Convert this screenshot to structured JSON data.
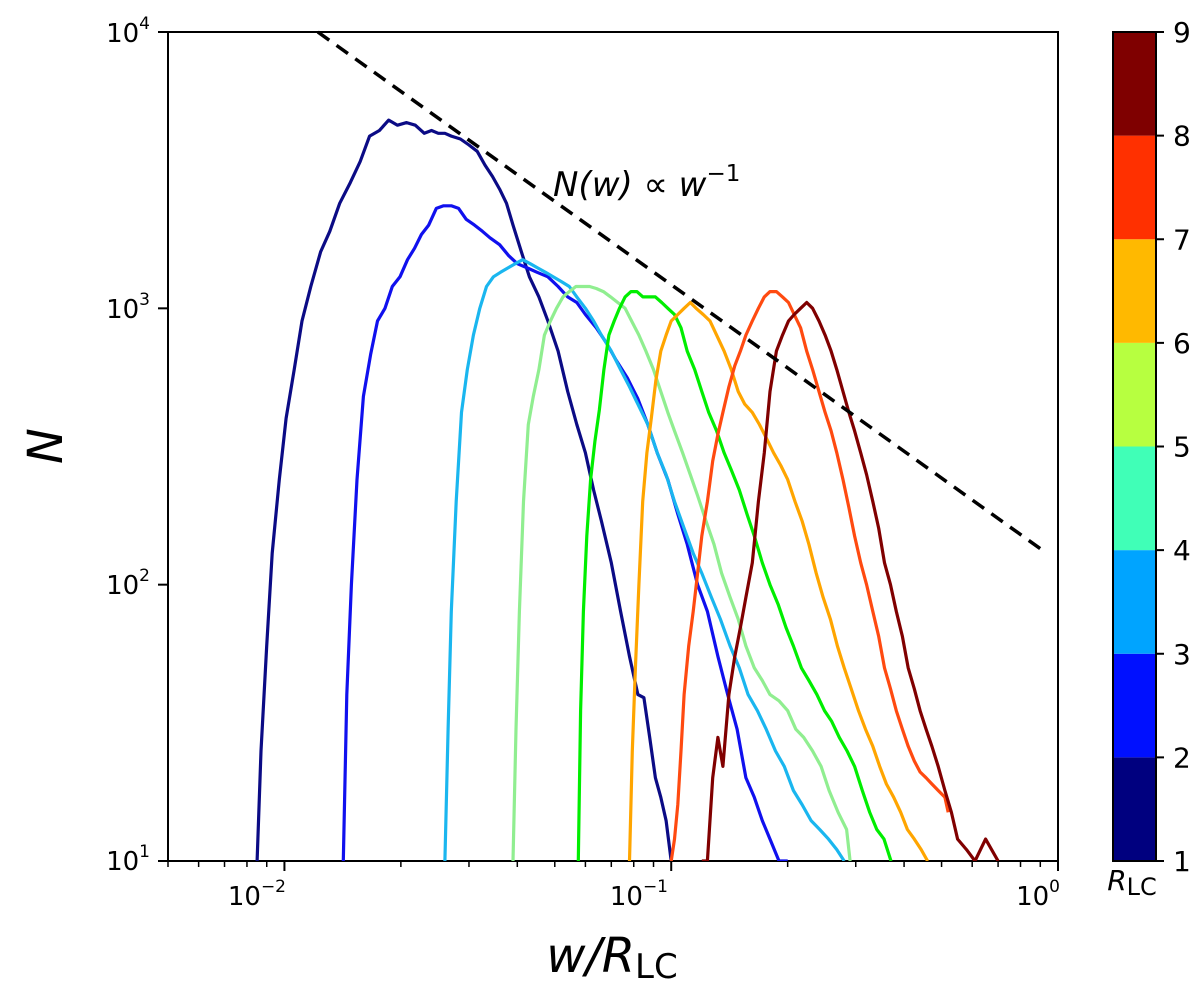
{
  "chart_data": {
    "type": "line",
    "xscale": "log",
    "yscale": "log",
    "xlim": [
      0.005,
      1
    ],
    "ylim": [
      10,
      10000
    ],
    "xlabel": {
      "italic": "w/R",
      "sub": "LC"
    },
    "ylabel": "N",
    "x_ticks": [
      {
        "base": "10",
        "exp": "−2",
        "value": 0.01
      },
      {
        "base": "10",
        "exp": "−1",
        "value": 0.1
      },
      {
        "base": "10",
        "exp": "0",
        "value": 1
      }
    ],
    "y_ticks": [
      {
        "base": "10",
        "exp": "1",
        "value": 10
      },
      {
        "base": "10",
        "exp": "2",
        "value": 100
      },
      {
        "base": "10",
        "exp": "3",
        "value": 1000
      },
      {
        "base": "10",
        "exp": "4",
        "value": 10000
      }
    ],
    "annotation": {
      "lhs": "N(w) ∝ w",
      "exp": "−1"
    },
    "reference_line": {
      "style": "dashed",
      "color": "#000000",
      "x": [
        0.0122,
        0.9
      ],
      "y": [
        10000,
        135
      ]
    },
    "colorbar": {
      "label": {
        "main": "R",
        "sub": "LC"
      },
      "range": [
        1,
        9
      ],
      "ticks": [
        "1",
        "2",
        "3",
        "4",
        "5",
        "6",
        "7",
        "8",
        "9"
      ],
      "colors": [
        "#00007f",
        "#0010ff",
        "#00a4ff",
        "#40ffb7",
        "#b7ff40",
        "#ffb900",
        "#ff3000",
        "#7f0000"
      ]
    },
    "series": [
      {
        "color": "#0b0b85",
        "x": [
          0.0085,
          0.0087,
          0.009,
          0.0093,
          0.0097,
          0.0101,
          0.0106,
          0.0111,
          0.0117,
          0.0124,
          0.0131,
          0.0139,
          0.0148,
          0.0157,
          0.0166,
          0.0176,
          0.0186,
          0.0196,
          0.0207,
          0.0218,
          0.023,
          0.024,
          0.025,
          0.026,
          0.027,
          0.0285,
          0.03,
          0.0315,
          0.033,
          0.0345,
          0.036,
          0.0375,
          0.039,
          0.041,
          0.043,
          0.0455,
          0.048,
          0.051,
          0.054,
          0.057,
          0.06,
          0.063,
          0.066,
          0.07,
          0.074,
          0.078,
          0.082,
          0.085,
          0.088,
          0.091,
          0.094,
          0.097,
          0.1
        ],
        "y": [
          10,
          25,
          60,
          130,
          240,
          400,
          600,
          900,
          1200,
          1600,
          1900,
          2400,
          2850,
          3400,
          4200,
          4400,
          4800,
          4600,
          4700,
          4600,
          4300,
          4400,
          4300,
          4300,
          4200,
          4100,
          3900,
          3700,
          3300,
          3000,
          2700,
          2400,
          2000,
          1600,
          1300,
          1100,
          900,
          700,
          500,
          380,
          300,
          220,
          170,
          120,
          80,
          55,
          40,
          39,
          28,
          20,
          17,
          14,
          10
        ]
      },
      {
        "color": "#1010ee",
        "x": [
          0.0142,
          0.0145,
          0.0149,
          0.0154,
          0.016,
          0.0167,
          0.0174,
          0.0182,
          0.019,
          0.0199,
          0.0208,
          0.0217,
          0.0226,
          0.0236,
          0.0247,
          0.0258,
          0.027,
          0.0282,
          0.0295,
          0.031,
          0.0325,
          0.034,
          0.036,
          0.038,
          0.04,
          0.0425,
          0.045,
          0.048,
          0.051,
          0.054,
          0.057,
          0.06,
          0.064,
          0.068,
          0.072,
          0.077,
          0.082,
          0.087,
          0.092,
          0.098,
          0.104,
          0.11,
          0.117,
          0.124,
          0.132,
          0.14,
          0.148,
          0.156,
          0.164,
          0.172,
          0.18,
          0.19,
          0.2
        ],
        "y": [
          10,
          40,
          100,
          240,
          480,
          680,
          900,
          1000,
          1200,
          1300,
          1500,
          1650,
          1850,
          2000,
          2300,
          2350,
          2350,
          2300,
          2100,
          2000,
          1900,
          1800,
          1700,
          1550,
          1450,
          1400,
          1350,
          1300,
          1200,
          1100,
          1050,
          950,
          850,
          750,
          650,
          560,
          470,
          380,
          300,
          240,
          180,
          140,
          100,
          80,
          55,
          40,
          30,
          20,
          17,
          14,
          12,
          10,
          10
        ]
      },
      {
        "color": "#1ab6ef",
        "x": [
          0.026,
          0.0265,
          0.027,
          0.0278,
          0.0287,
          0.0297,
          0.0308,
          0.032,
          0.0333,
          0.0347,
          0.0362,
          0.0378,
          0.0395,
          0.0413,
          0.0432,
          0.0452,
          0.0473,
          0.0495,
          0.052,
          0.0545,
          0.057,
          0.06,
          0.063,
          0.066,
          0.07,
          0.074,
          0.078,
          0.082,
          0.087,
          0.092,
          0.097,
          0.102,
          0.108,
          0.114,
          0.12,
          0.127,
          0.134,
          0.142,
          0.15,
          0.158,
          0.167,
          0.176,
          0.186,
          0.196,
          0.207,
          0.218,
          0.23,
          0.242,
          0.255,
          0.268,
          0.28
        ],
        "y": [
          10,
          30,
          80,
          200,
          420,
          600,
          800,
          1000,
          1200,
          1300,
          1350,
          1400,
          1450,
          1500,
          1450,
          1400,
          1350,
          1300,
          1250,
          1200,
          1100,
          1000,
          900,
          800,
          700,
          600,
          520,
          450,
          380,
          300,
          250,
          200,
          160,
          130,
          110,
          90,
          75,
          60,
          50,
          40,
          35,
          30,
          25,
          22,
          18,
          16,
          14,
          13,
          12,
          11,
          10
        ]
      },
      {
        "color": "#90ee90",
        "x": [
          0.039,
          0.0397,
          0.0405,
          0.0415,
          0.0427,
          0.044,
          0.0455,
          0.047,
          0.0487,
          0.0505,
          0.0525,
          0.0545,
          0.0567,
          0.059,
          0.0615,
          0.064,
          0.0668,
          0.0697,
          0.0727,
          0.076,
          0.079,
          0.0825,
          0.086,
          0.09,
          0.094,
          0.098,
          0.102,
          0.107,
          0.112,
          0.117,
          0.123,
          0.129,
          0.135,
          0.142,
          0.149,
          0.156,
          0.164,
          0.172,
          0.18,
          0.19,
          0.2,
          0.21,
          0.22,
          0.232,
          0.244,
          0.256,
          0.27,
          0.284,
          0.29
        ],
        "y": [
          10,
          30,
          80,
          200,
          380,
          480,
          600,
          800,
          900,
          1000,
          1100,
          1150,
          1200,
          1200,
          1200,
          1180,
          1150,
          1100,
          1050,
          1000,
          900,
          800,
          700,
          600,
          500,
          420,
          360,
          300,
          250,
          210,
          170,
          140,
          110,
          90,
          75,
          60,
          50,
          45,
          40,
          38,
          35,
          30,
          28,
          25,
          22,
          18,
          15,
          13,
          10
        ]
      },
      {
        "color": "#00ee00",
        "x": [
          0.0575,
          0.0583,
          0.0593,
          0.0605,
          0.0619,
          0.0635,
          0.0652,
          0.067,
          0.069,
          0.0712,
          0.0735,
          0.076,
          0.0787,
          0.0815,
          0.0845,
          0.0877,
          0.091,
          0.0945,
          0.098,
          0.102,
          0.106,
          0.11,
          0.115,
          0.12,
          0.125,
          0.131,
          0.137,
          0.143,
          0.15,
          0.157,
          0.164,
          0.172,
          0.18,
          0.189,
          0.198,
          0.207,
          0.217,
          0.227,
          0.238,
          0.249,
          0.26,
          0.272,
          0.285,
          0.298,
          0.312,
          0.326,
          0.34,
          0.355,
          0.37
        ],
        "y": [
          10,
          35,
          80,
          150,
          240,
          330,
          430,
          600,
          800,
          900,
          1000,
          1100,
          1150,
          1150,
          1100,
          1100,
          1100,
          1050,
          1000,
          950,
          850,
          700,
          600,
          500,
          420,
          360,
          300,
          260,
          220,
          180,
          150,
          120,
          100,
          85,
          70,
          60,
          50,
          45,
          40,
          35,
          32,
          28,
          25,
          22,
          18,
          15,
          13,
          12,
          10
        ]
      },
      {
        "color": "#ffa500",
        "x": [
          0.078,
          0.0793,
          0.0808,
          0.0825,
          0.0844,
          0.0865,
          0.0888,
          0.0913,
          0.094,
          0.097,
          0.1,
          0.104,
          0.108,
          0.112,
          0.116,
          0.121,
          0.126,
          0.131,
          0.137,
          0.143,
          0.149,
          0.155,
          0.162,
          0.169,
          0.176,
          0.184,
          0.192,
          0.2,
          0.209,
          0.218,
          0.227,
          0.237,
          0.247,
          0.258,
          0.269,
          0.28,
          0.292,
          0.305,
          0.318,
          0.332,
          0.346,
          0.36,
          0.376,
          0.392,
          0.408,
          0.425,
          0.443,
          0.46
        ],
        "y": [
          10,
          25,
          50,
          100,
          200,
          300,
          400,
          550,
          700,
          800,
          900,
          950,
          1000,
          1050,
          1000,
          950,
          900,
          800,
          700,
          600,
          500,
          450,
          420,
          380,
          340,
          300,
          270,
          240,
          200,
          170,
          140,
          110,
          90,
          75,
          60,
          50,
          42,
          35,
          30,
          26,
          22,
          19,
          17,
          15,
          13,
          12,
          11,
          10
        ]
      },
      {
        "color": "#ff4a10",
        "x": [
          0.1,
          0.102,
          0.104,
          0.106,
          0.108,
          0.111,
          0.114,
          0.117,
          0.12,
          0.124,
          0.128,
          0.132,
          0.136,
          0.141,
          0.146,
          0.151,
          0.156,
          0.162,
          0.168,
          0.174,
          0.18,
          0.187,
          0.194,
          0.201,
          0.208,
          0.216,
          0.224,
          0.232,
          0.241,
          0.25,
          0.259,
          0.268,
          0.278,
          0.288,
          0.298,
          0.309,
          0.32,
          0.332,
          0.344,
          0.356,
          0.369,
          0.382,
          0.396,
          0.41,
          0.425,
          0.44,
          0.456,
          0.472,
          0.49,
          0.51,
          0.52
        ],
        "y": [
          10,
          12,
          16,
          25,
          40,
          60,
          80,
          110,
          150,
          200,
          280,
          350,
          420,
          520,
          620,
          700,
          800,
          900,
          1000,
          1100,
          1150,
          1150,
          1100,
          1050,
          950,
          850,
          700,
          600,
          500,
          420,
          360,
          300,
          240,
          190,
          150,
          120,
          100,
          80,
          65,
          50,
          42,
          35,
          30,
          26,
          23,
          21,
          20,
          19,
          18,
          17,
          15
        ]
      },
      {
        "color": "#800000",
        "x": [
          0.12,
          0.124,
          0.128,
          0.132,
          0.136,
          0.141,
          0.146,
          0.151,
          0.156,
          0.162,
          0.168,
          0.174,
          0.18,
          0.187,
          0.194,
          0.201,
          0.208,
          0.216,
          0.224,
          0.232,
          0.241,
          0.25,
          0.259,
          0.268,
          0.278,
          0.288,
          0.298,
          0.309,
          0.32,
          0.332,
          0.344,
          0.356,
          0.369,
          0.382,
          0.396,
          0.41,
          0.425,
          0.44,
          0.456,
          0.472,
          0.49,
          0.51,
          0.53,
          0.55,
          0.58,
          0.61,
          0.65,
          0.7
        ],
        "y": [
          10,
          10,
          20,
          28,
          22,
          40,
          55,
          70,
          90,
          120,
          200,
          300,
          500,
          700,
          800,
          900,
          950,
          1000,
          1050,
          1000,
          900,
          800,
          700,
          600,
          500,
          420,
          360,
          300,
          250,
          200,
          160,
          120,
          100,
          80,
          65,
          50,
          42,
          35,
          30,
          26,
          22,
          18,
          15,
          12,
          11,
          10,
          12,
          10
        ]
      }
    ]
  }
}
